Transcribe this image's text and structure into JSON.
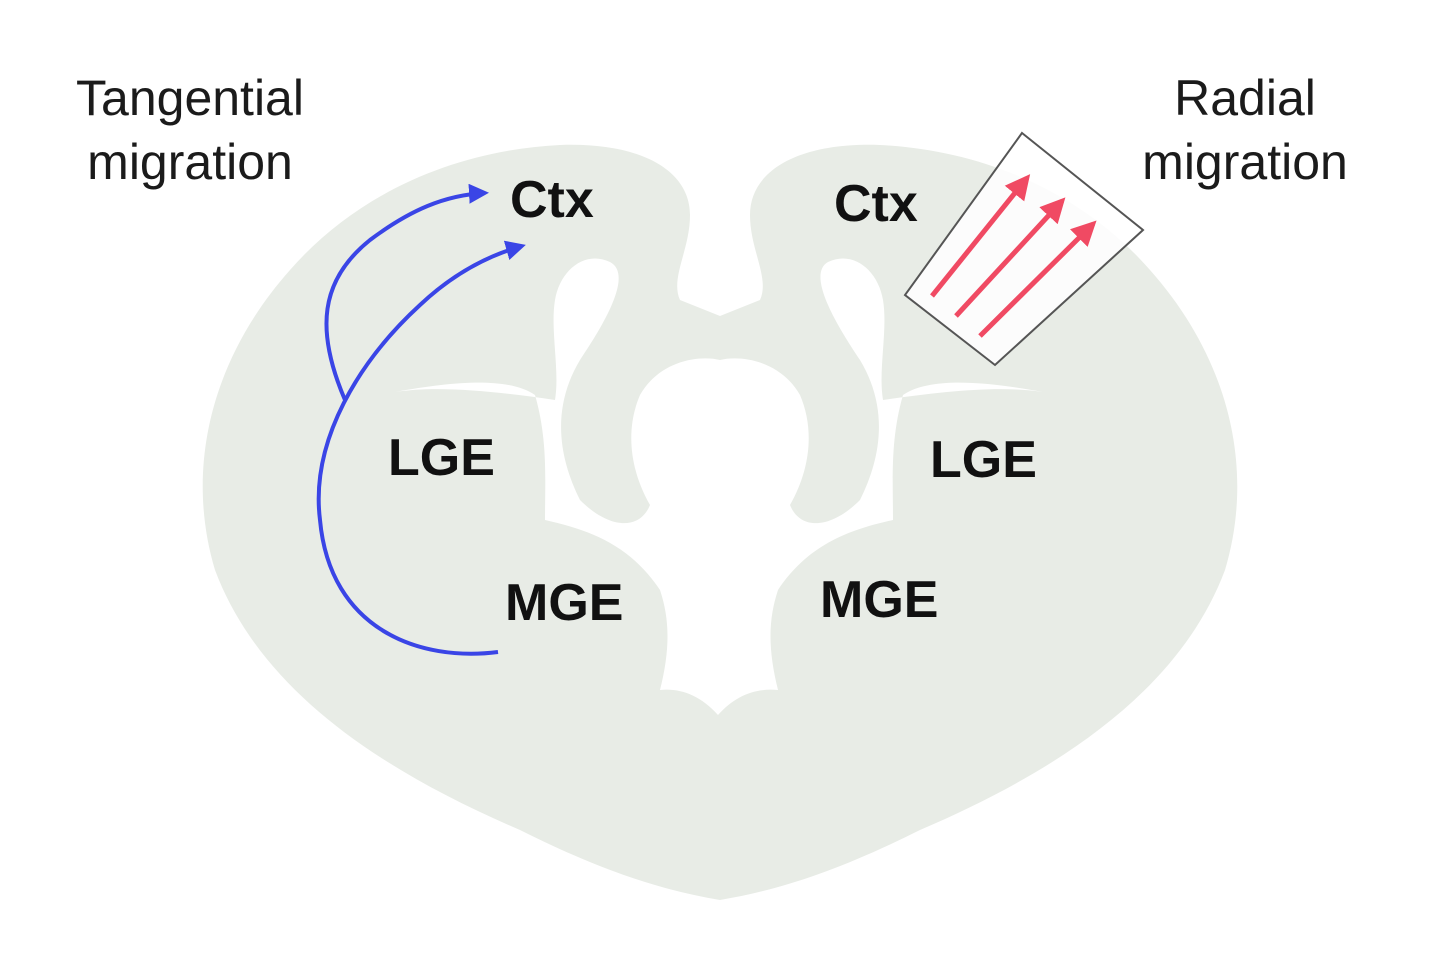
{
  "titles": {
    "left": {
      "line1": "Tangential",
      "line2": "migration"
    },
    "right": {
      "line1": "Radial",
      "line2": "migration"
    }
  },
  "regions": {
    "left": {
      "ctx": "Ctx",
      "lge": "LGE",
      "mge": "MGE"
    },
    "right": {
      "ctx": "Ctx",
      "lge": "LGE",
      "mge": "MGE"
    }
  },
  "colors": {
    "tissue": "#e8ece6",
    "ventricle": "#ffffff",
    "tangential_arrow": "#3a45e6",
    "radial_arrow": "#f04a63",
    "inset_border": "#555555"
  }
}
